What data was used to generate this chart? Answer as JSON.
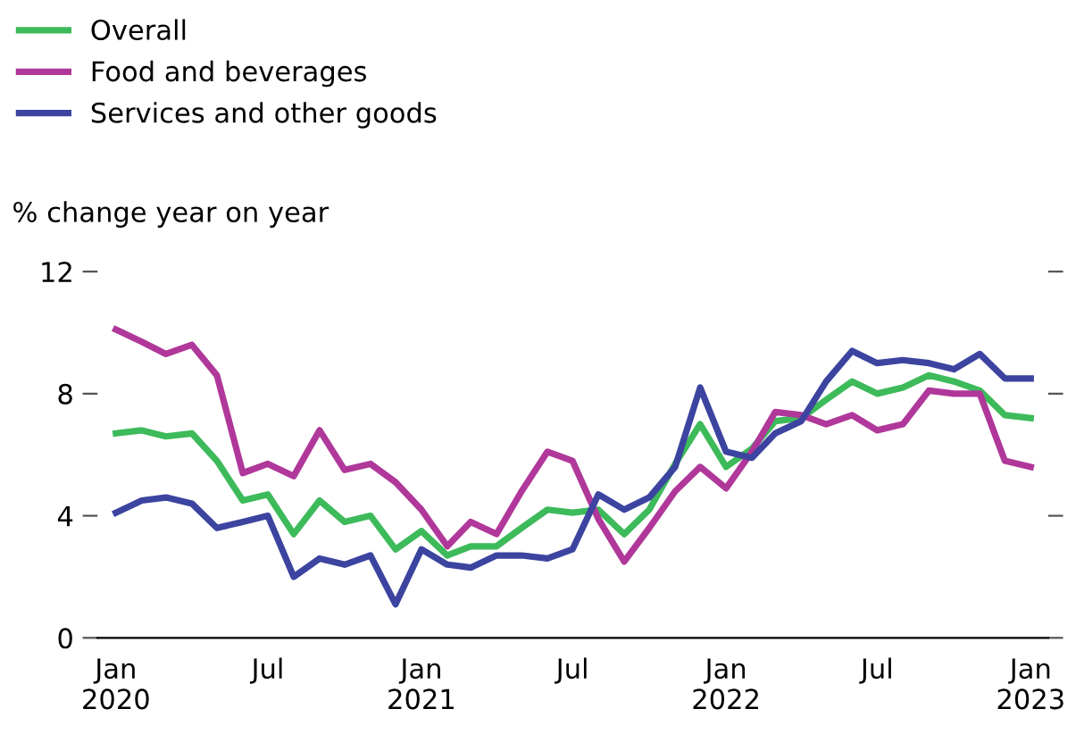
{
  "chart_data": {
    "type": "line",
    "ylabel": "% change year on year",
    "x": [
      "2020-01",
      "2020-02",
      "2020-03",
      "2020-04",
      "2020-05",
      "2020-06",
      "2020-07",
      "2020-08",
      "2020-09",
      "2020-10",
      "2020-11",
      "2020-12",
      "2021-01",
      "2021-02",
      "2021-03",
      "2021-04",
      "2021-05",
      "2021-06",
      "2021-07",
      "2021-08",
      "2021-09",
      "2021-10",
      "2021-11",
      "2021-12",
      "2022-01",
      "2022-02",
      "2022-03",
      "2022-04",
      "2022-05",
      "2022-06",
      "2022-07",
      "2022-08",
      "2022-09",
      "2022-10",
      "2022-11",
      "2022-12",
      "2023-01"
    ],
    "series": [
      {
        "name": "Overall",
        "color": "#3dba5a",
        "values": [
          6.7,
          6.8,
          6.6,
          6.7,
          5.8,
          4.5,
          4.7,
          3.4,
          4.5,
          3.8,
          4.0,
          2.9,
          3.5,
          2.7,
          3.0,
          3.0,
          3.6,
          4.2,
          4.1,
          4.2,
          3.4,
          4.2,
          5.7,
          7.0,
          5.6,
          6.2,
          7.1,
          7.2,
          7.8,
          8.4,
          8.0,
          8.2,
          8.6,
          8.4,
          8.1,
          7.3,
          7.2
        ]
      },
      {
        "name": "Food and beverages",
        "color": "#b0389a",
        "values": [
          10.1,
          9.7,
          9.3,
          9.6,
          8.6,
          5.4,
          5.7,
          5.3,
          6.8,
          5.5,
          5.7,
          5.1,
          4.2,
          3.0,
          3.8,
          3.4,
          4.8,
          6.1,
          5.8,
          3.9,
          2.5,
          3.6,
          4.8,
          5.6,
          4.9,
          6.1,
          7.4,
          7.3,
          7.0,
          7.3,
          6.8,
          7.0,
          8.1,
          8.0,
          8.0,
          5.8,
          5.6
        ]
      },
      {
        "name": "Services and other goods",
        "color": "#3c44a0",
        "values": [
          4.1,
          4.5,
          4.6,
          4.4,
          3.6,
          3.8,
          4.0,
          2.0,
          2.6,
          2.4,
          2.7,
          1.1,
          2.9,
          2.4,
          2.3,
          2.7,
          2.7,
          2.6,
          2.9,
          4.7,
          4.2,
          4.6,
          5.6,
          8.2,
          6.1,
          5.9,
          6.7,
          7.1,
          8.4,
          9.4,
          9.0,
          9.1,
          9.0,
          8.8,
          9.3,
          8.5,
          8.5
        ]
      }
    ],
    "xlim": [
      "2019-12-10",
      "2023-01-22"
    ],
    "xticks": [
      {
        "value": "2020-01",
        "label": "Jan\n2020"
      },
      {
        "value": "2020-07",
        "label": "Jul"
      },
      {
        "value": "2021-01",
        "label": "Jan\n2021"
      },
      {
        "value": "2021-07",
        "label": "Jul"
      },
      {
        "value": "2022-01",
        "label": "Jan\n2022"
      },
      {
        "value": "2022-07",
        "label": "Jul"
      },
      {
        "value": "2023-01",
        "label": "Jan\n2023"
      }
    ],
    "ylim": [
      0,
      12
    ],
    "yticks": [
      0,
      4,
      8,
      12
    ],
    "grid": false,
    "legend": "top left",
    "marker": "none",
    "line_style": "solid"
  }
}
